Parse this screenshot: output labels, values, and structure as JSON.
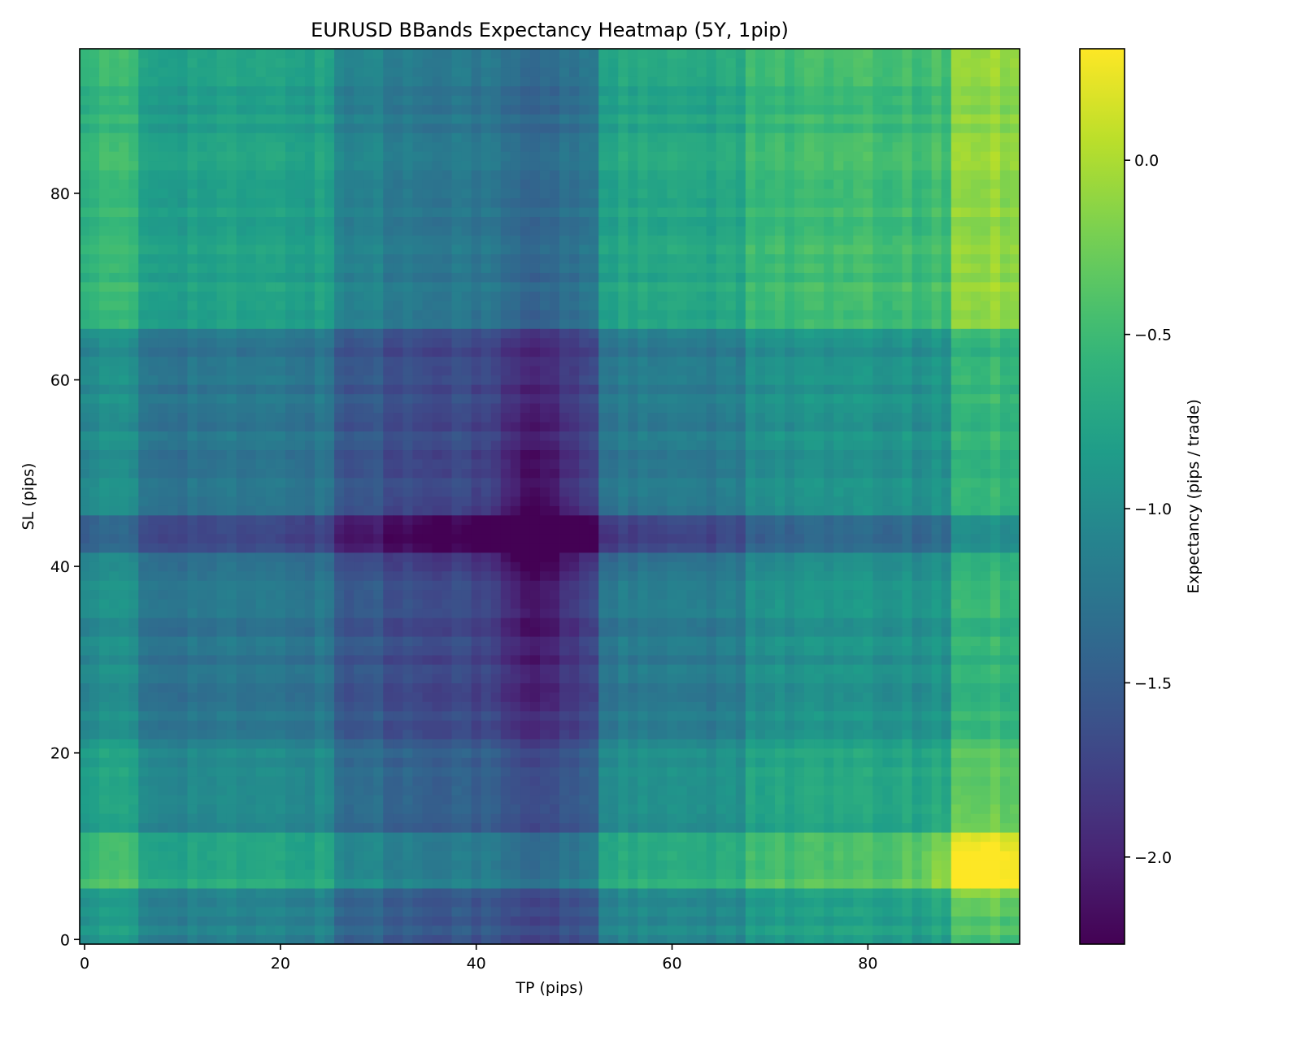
{
  "chart_data": {
    "type": "heatmap",
    "title": "EURUSD BBands Expectancy Heatmap (5Y, 1pip)",
    "xlabel": "TP (pips)",
    "ylabel": "SL (pips)",
    "colorbar_label": "Expectancy (pips / trade)",
    "colormap": "viridis",
    "xlim": [
      -0.5,
      95.5
    ],
    "ylim": [
      -0.5,
      95.5
    ],
    "clim": [
      -2.25,
      0.32
    ],
    "x_ticks": [
      0,
      20,
      40,
      60,
      80
    ],
    "y_ticks": [
      0,
      20,
      40,
      60,
      80
    ],
    "colorbar_ticks": [
      0.0,
      -0.5,
      -1.0,
      -1.5,
      -2.0
    ],
    "x_tick_labels": [
      "0",
      "20",
      "40",
      "60",
      "80"
    ],
    "y_tick_labels": [
      "0",
      "20",
      "40",
      "60",
      "80"
    ],
    "colorbar_tick_labels": [
      "0.0",
      "−0.5",
      "−1.0",
      "−1.5",
      "−2.0"
    ],
    "grid": false,
    "legend": "none",
    "tp_bands": [
      {
        "tp_from": 0,
        "tp_to": 5,
        "offset": 0.25
      },
      {
        "tp_from": 6,
        "tp_to": 25,
        "offset": 0.0
      },
      {
        "tp_from": 26,
        "tp_to": 30,
        "offset": -0.3
      },
      {
        "tp_from": 31,
        "tp_to": 52,
        "offset": -0.4
      },
      {
        "tp_from": 53,
        "tp_to": 67,
        "offset": 0.05
      },
      {
        "tp_from": 68,
        "tp_to": 88,
        "offset": 0.3
      },
      {
        "tp_from": 89,
        "tp_to": 95,
        "offset": 0.7
      }
    ],
    "sl_bands": [
      {
        "sl_from": 0,
        "sl_to": 5,
        "offset": -0.05
      },
      {
        "sl_from": 6,
        "sl_to": 11,
        "offset": 0.35
      },
      {
        "sl_from": 12,
        "sl_to": 21,
        "offset": 0.0
      },
      {
        "sl_from": 22,
        "sl_to": 41,
        "offset": -0.2
      },
      {
        "sl_from": 42,
        "sl_to": 45,
        "offset": -0.45
      },
      {
        "sl_from": 46,
        "sl_to": 65,
        "offset": -0.2
      },
      {
        "sl_from": 66,
        "sl_to": 95,
        "offset": 0.25
      }
    ],
    "base_value": -1.05,
    "minimum": {
      "tp": 46,
      "sl": 43,
      "value": -2.25
    },
    "maximum": {
      "tp": 92,
      "sl": 8,
      "value": 0.32
    }
  }
}
